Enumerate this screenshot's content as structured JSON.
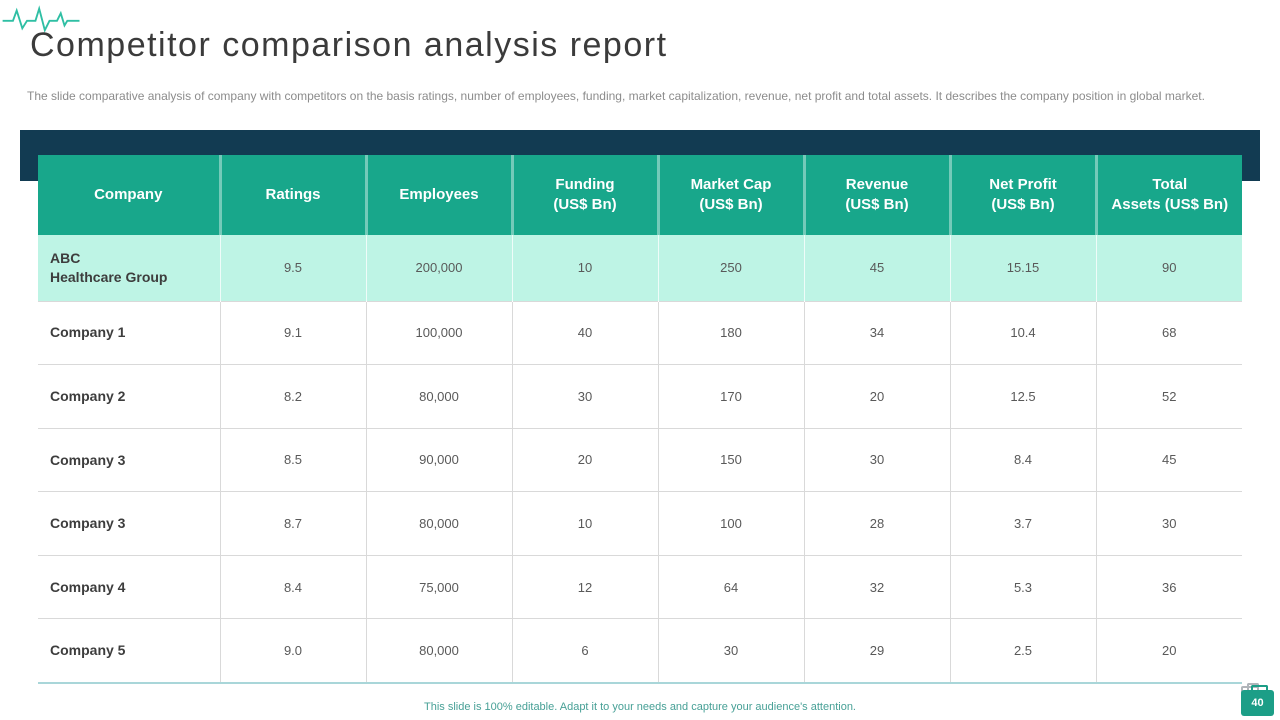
{
  "slide": {
    "title": "Competitor comparison analysis report",
    "subtitle": "The slide comparative analysis of company with competitors on the basis ratings, number of employees, funding, market capitalization, revenue, net profit and total assets. It describes the company position in global market.",
    "footer_note": "This slide is 100% editable. Adapt it to your needs and capture your audience's attention.",
    "slide_number": "40"
  },
  "icons": {
    "heartbeat": "ekg-pulse-line",
    "slide_number_badge": "medical-bag",
    "behind_badge": "gray-briefcase"
  },
  "colors": {
    "header_teal": "#18A78B",
    "highlight_row_mint": "#BEF4E5",
    "navy_band": "#123B52",
    "ekg_teal": "#2FBFA4",
    "badge_teal": "#1C9E87",
    "footer_text_teal": "#47A096",
    "row_border_gray": "#D9D9D9",
    "table_bottom_line": "#A9D6D9"
  },
  "chart_data": {
    "type": "table",
    "columns": [
      "Company",
      "Ratings",
      "Employees",
      "Funding\n(US$ Bn)",
      "Market Cap\n(US$ Bn)",
      "Revenue\n(US$ Bn)",
      "Net Profit\n(US$ Bn)",
      "Total\nAssets  (US$ Bn)"
    ],
    "rows": [
      {
        "company": "ABC\nHealthcare Group",
        "highlight": true,
        "values": [
          "9.5",
          "200,000",
          "10",
          "250",
          "45",
          "15.15",
          "90"
        ]
      },
      {
        "company": "Company 1",
        "highlight": false,
        "values": [
          "9.1",
          "100,000",
          "40",
          "180",
          "34",
          "10.4",
          "68"
        ]
      },
      {
        "company": "Company 2",
        "highlight": false,
        "values": [
          "8.2",
          "80,000",
          "30",
          "170",
          "20",
          "12.5",
          "52"
        ]
      },
      {
        "company": "Company 3",
        "highlight": false,
        "values": [
          "8.5",
          "90,000",
          "20",
          "150",
          "30",
          "8.4",
          "45"
        ]
      },
      {
        "company": "Company 3",
        "highlight": false,
        "values": [
          "8.7",
          "80,000",
          "10",
          "100",
          "28",
          "3.7",
          "30"
        ]
      },
      {
        "company": "Company 4",
        "highlight": false,
        "values": [
          "8.4",
          "75,000",
          "12",
          "64",
          "32",
          "5.3",
          "36"
        ]
      },
      {
        "company": "Company 5",
        "highlight": false,
        "values": [
          "9.0",
          "80,000",
          "6",
          "30",
          "29",
          "2.5",
          "20"
        ]
      }
    ]
  }
}
